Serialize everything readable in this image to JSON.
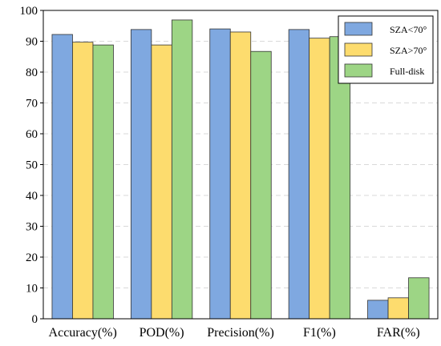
{
  "chart_data": {
    "type": "bar",
    "title": "",
    "xlabel": "",
    "ylabel": "",
    "categories": [
      "Accuracy(%)",
      "POD(%)",
      "Precision(%)",
      "F1(%)",
      "FAR(%)"
    ],
    "series": [
      {
        "name": "SZA<70°",
        "values": [
          92.2,
          93.8,
          94.0,
          93.8,
          6.0
        ],
        "color": "#7FA8E0"
      },
      {
        "name": "SZA>70°",
        "values": [
          89.7,
          88.8,
          93.0,
          91.0,
          6.8
        ],
        "color": "#FDDC6E"
      },
      {
        "name": "Full-disk",
        "values": [
          88.8,
          96.9,
          86.7,
          91.5,
          13.3
        ],
        "color": "#9DD585"
      }
    ],
    "ylim": [
      0,
      100
    ],
    "yticks": [
      0,
      10,
      20,
      30,
      40,
      50,
      60,
      70,
      80,
      90,
      100
    ],
    "grid": true,
    "legend_position": "top-right"
  }
}
